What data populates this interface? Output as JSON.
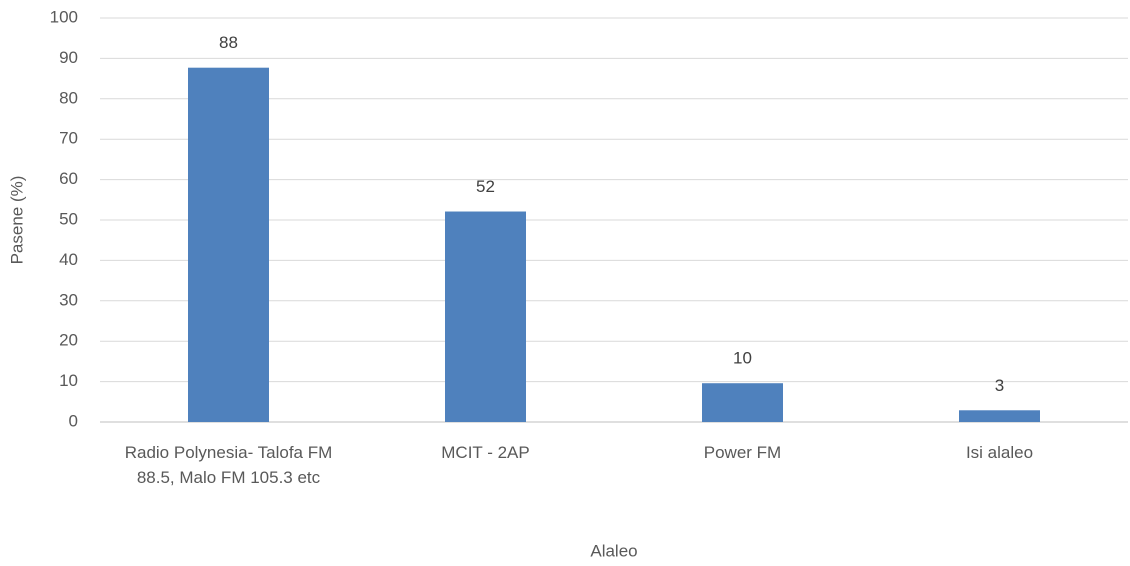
{
  "chart_data": {
    "type": "bar",
    "categories": [
      "Radio Polynesia- Talofa FM 88.5, Malo FM 105.3 etc",
      "MCIT - 2AP",
      "Power FM",
      "Isi alaleo"
    ],
    "values": [
      87.7,
      52.1,
      9.6,
      2.9
    ],
    "value_labels": [
      "88",
      "52",
      "10",
      "3"
    ],
    "color": "#4f81bd",
    "x_label": "Alaleo",
    "y_label": "Pasene (%)",
    "ylim": [
      0,
      100
    ],
    "yticks": [
      0,
      10,
      20,
      30,
      40,
      50,
      60,
      70,
      80,
      90,
      100
    ],
    "grid": true
  }
}
